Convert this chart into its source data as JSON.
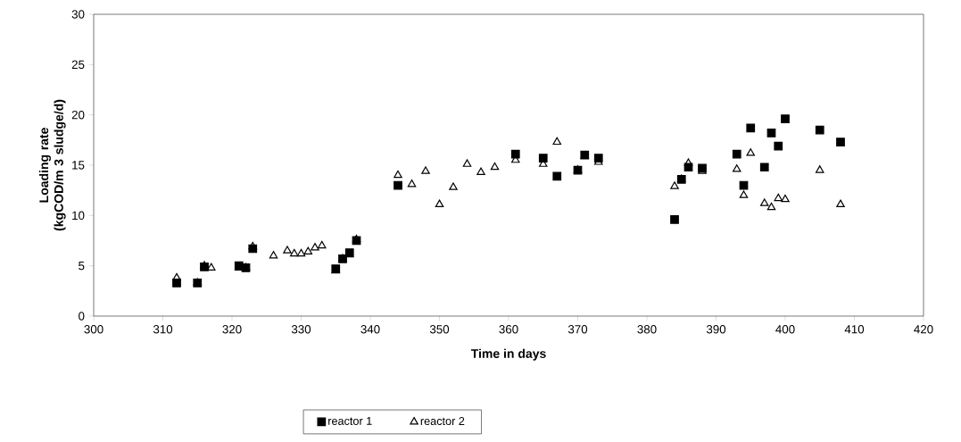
{
  "chart_data": {
    "type": "scatter",
    "xlabel": "Time in days",
    "ylabel": "Loading rate (kgCOD/m 3 sludge/d)",
    "xlim": [
      300,
      420
    ],
    "xticks": [
      300,
      310,
      320,
      330,
      340,
      350,
      360,
      370,
      380,
      390,
      400,
      410,
      420
    ],
    "ylim": [
      0,
      30
    ],
    "yticks": [
      0,
      5,
      10,
      15,
      20,
      25,
      30
    ],
    "grid": false,
    "legend": "bottom",
    "series": [
      {
        "name": "reactor 1",
        "color": "#000000",
        "marker": "square",
        "x": [
          312,
          315,
          316,
          321,
          322,
          323,
          335,
          336,
          337,
          338,
          344,
          361,
          365,
          367,
          370,
          371,
          373,
          384,
          385,
          386,
          388,
          393,
          394,
          395,
          397,
          398,
          399,
          400,
          405,
          408
        ],
        "values": [
          3.3,
          3.3,
          4.9,
          5.0,
          4.8,
          6.7,
          4.7,
          5.7,
          6.3,
          7.5,
          13.0,
          16.1,
          15.7,
          13.9,
          14.5,
          16.0,
          15.7,
          9.6,
          13.6,
          14.8,
          14.7,
          16.1,
          13.0,
          18.7,
          14.8,
          18.2,
          16.9,
          19.6,
          18.5,
          17.3
        ]
      },
      {
        "name": "reactor 2",
        "color": "#000000",
        "marker": "triangle",
        "x": [
          312,
          315,
          316,
          317,
          321,
          322,
          323,
          326,
          328,
          329,
          330,
          331,
          332,
          333,
          335,
          336,
          337,
          338,
          344,
          346,
          348,
          350,
          352,
          354,
          356,
          358,
          361,
          365,
          367,
          370,
          371,
          373,
          384,
          385,
          386,
          388,
          393,
          394,
          395,
          397,
          398,
          399,
          400,
          405,
          408
        ],
        "values": [
          3.8,
          3.3,
          5.0,
          4.8,
          4.8,
          4.8,
          6.9,
          6.0,
          6.5,
          6.2,
          6.2,
          6.4,
          6.8,
          7.0,
          4.5,
          5.7,
          6.1,
          7.6,
          14.0,
          13.1,
          14.4,
          11.1,
          12.8,
          15.1,
          14.3,
          14.8,
          15.5,
          15.1,
          17.3,
          14.5,
          15.9,
          15.3,
          12.9,
          13.6,
          15.2,
          14.4,
          14.6,
          12.0,
          16.2,
          11.2,
          10.8,
          11.7,
          11.6,
          14.5,
          11.1
        ]
      }
    ]
  }
}
